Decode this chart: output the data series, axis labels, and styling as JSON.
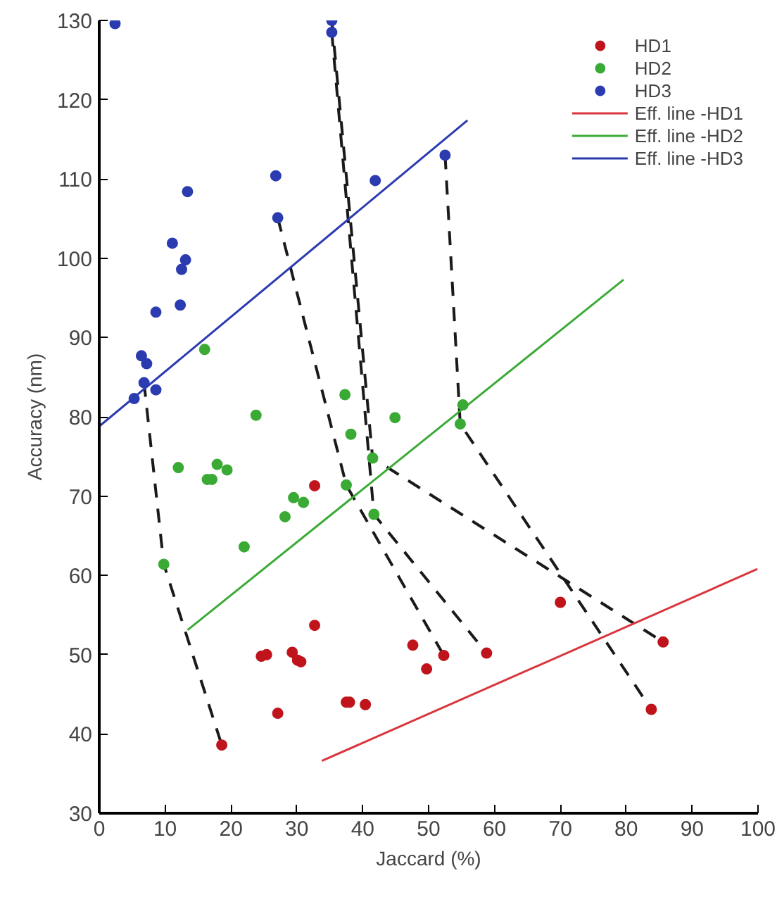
{
  "chart_data": {
    "type": "scatter",
    "xlabel": "Jaccard (%)",
    "ylabel": "Accuracy (nm)",
    "xlim": [
      0,
      100
    ],
    "ylim": [
      30,
      130
    ],
    "xticks": [
      0,
      10,
      20,
      30,
      40,
      50,
      60,
      70,
      80,
      90,
      100
    ],
    "yticks": [
      30,
      40,
      50,
      60,
      70,
      80,
      90,
      100,
      110,
      120,
      130
    ],
    "grid": false,
    "legend": "top right",
    "series": [
      {
        "type": "line",
        "line_style": "dashed",
        "color": "#1a1a1a",
        "x": [
          6.8,
          9.8,
          18.6
        ],
        "values": [
          84.3,
          61.4,
          38.6
        ]
      },
      {
        "type": "line",
        "line_style": "dashed",
        "color": "#1a1a1a",
        "x": [
          27.1,
          37.5,
          52.3
        ],
        "values": [
          105.1,
          71.4,
          49.9
        ]
      },
      {
        "type": "line",
        "line_style": "dashed",
        "color": "#1a1a1a",
        "x": [
          35.3,
          41.7,
          58.8
        ],
        "values": [
          128.5,
          67.7,
          50.2
        ]
      },
      {
        "type": "line",
        "line_style": "dashed",
        "color": "#1a1a1a",
        "x": [
          35.3,
          41.5,
          85.6
        ],
        "values": [
          130,
          74.8,
          51.6
        ]
      },
      {
        "type": "line",
        "line_style": "dashed",
        "color": "#1a1a1a",
        "x": [
          52.5,
          54.8,
          83.8
        ],
        "values": [
          113,
          79.1,
          43.1
        ]
      },
      {
        "name": "HD1",
        "marker": "circle",
        "color": "#c0141c",
        "x": [
          32.7,
          32.7,
          24.6,
          25.4,
          29.3,
          30.1,
          30.6,
          27.1,
          37.5,
          38.0,
          40.4,
          47.6,
          49.7,
          18.6,
          52.3,
          58.8,
          70.0,
          85.6,
          83.8
        ],
        "values": [
          71.3,
          53.7,
          49.8,
          50.0,
          50.3,
          49.3,
          49.1,
          42.6,
          44.0,
          44.0,
          43.7,
          51.2,
          48.2,
          38.6,
          49.9,
          50.2,
          56.6,
          51.6,
          43.1
        ]
      },
      {
        "name": "HD2",
        "marker": "circle",
        "color": "#3aaa35",
        "x": [
          16.0,
          23.8,
          37.3,
          44.9,
          38.2,
          41.5,
          12.0,
          17.9,
          19.4,
          16.4,
          17.1,
          37.5,
          29.5,
          31.0,
          28.2,
          41.7,
          22.0,
          9.8,
          54.8,
          55.2
        ],
        "values": [
          88.5,
          80.2,
          82.8,
          79.9,
          77.8,
          74.8,
          73.6,
          74.0,
          73.3,
          72.1,
          72.1,
          71.4,
          69.8,
          69.2,
          67.4,
          67.7,
          63.6,
          61.4,
          79.1,
          81.5
        ]
      },
      {
        "name": "HD3",
        "marker": "circle",
        "color": "#2b3bb0",
        "x": [
          2.4,
          35.3,
          35.3,
          26.8,
          41.9,
          13.4,
          27.1,
          11.1,
          13.1,
          12.5,
          12.3,
          8.6,
          6.4,
          7.2,
          6.8,
          8.6,
          5.3,
          52.5
        ],
        "values": [
          129.6,
          130,
          128.5,
          110.4,
          109.8,
          108.4,
          105.1,
          101.9,
          99.8,
          98.6,
          94.1,
          93.2,
          87.7,
          86.7,
          84.3,
          83.4,
          82.3,
          113
        ]
      },
      {
        "name": "Eff. line -HD1",
        "type": "line",
        "line_style": "solid",
        "color": "#d9363e",
        "x": [
          33.8,
          99.9
        ],
        "values": [
          36.6,
          60.8
        ]
      },
      {
        "name": "Eff. line -HD2",
        "type": "line",
        "line_style": "solid",
        "color": "#3aaa35",
        "x": [
          13.4,
          79.6
        ],
        "values": [
          53.1,
          97.3
        ]
      },
      {
        "name": "Eff. line -HD3",
        "type": "line",
        "line_style": "solid",
        "color": "#2b3bb0",
        "x": [
          0,
          55.9
        ],
        "values": [
          78.8,
          117.4
        ]
      }
    ]
  }
}
